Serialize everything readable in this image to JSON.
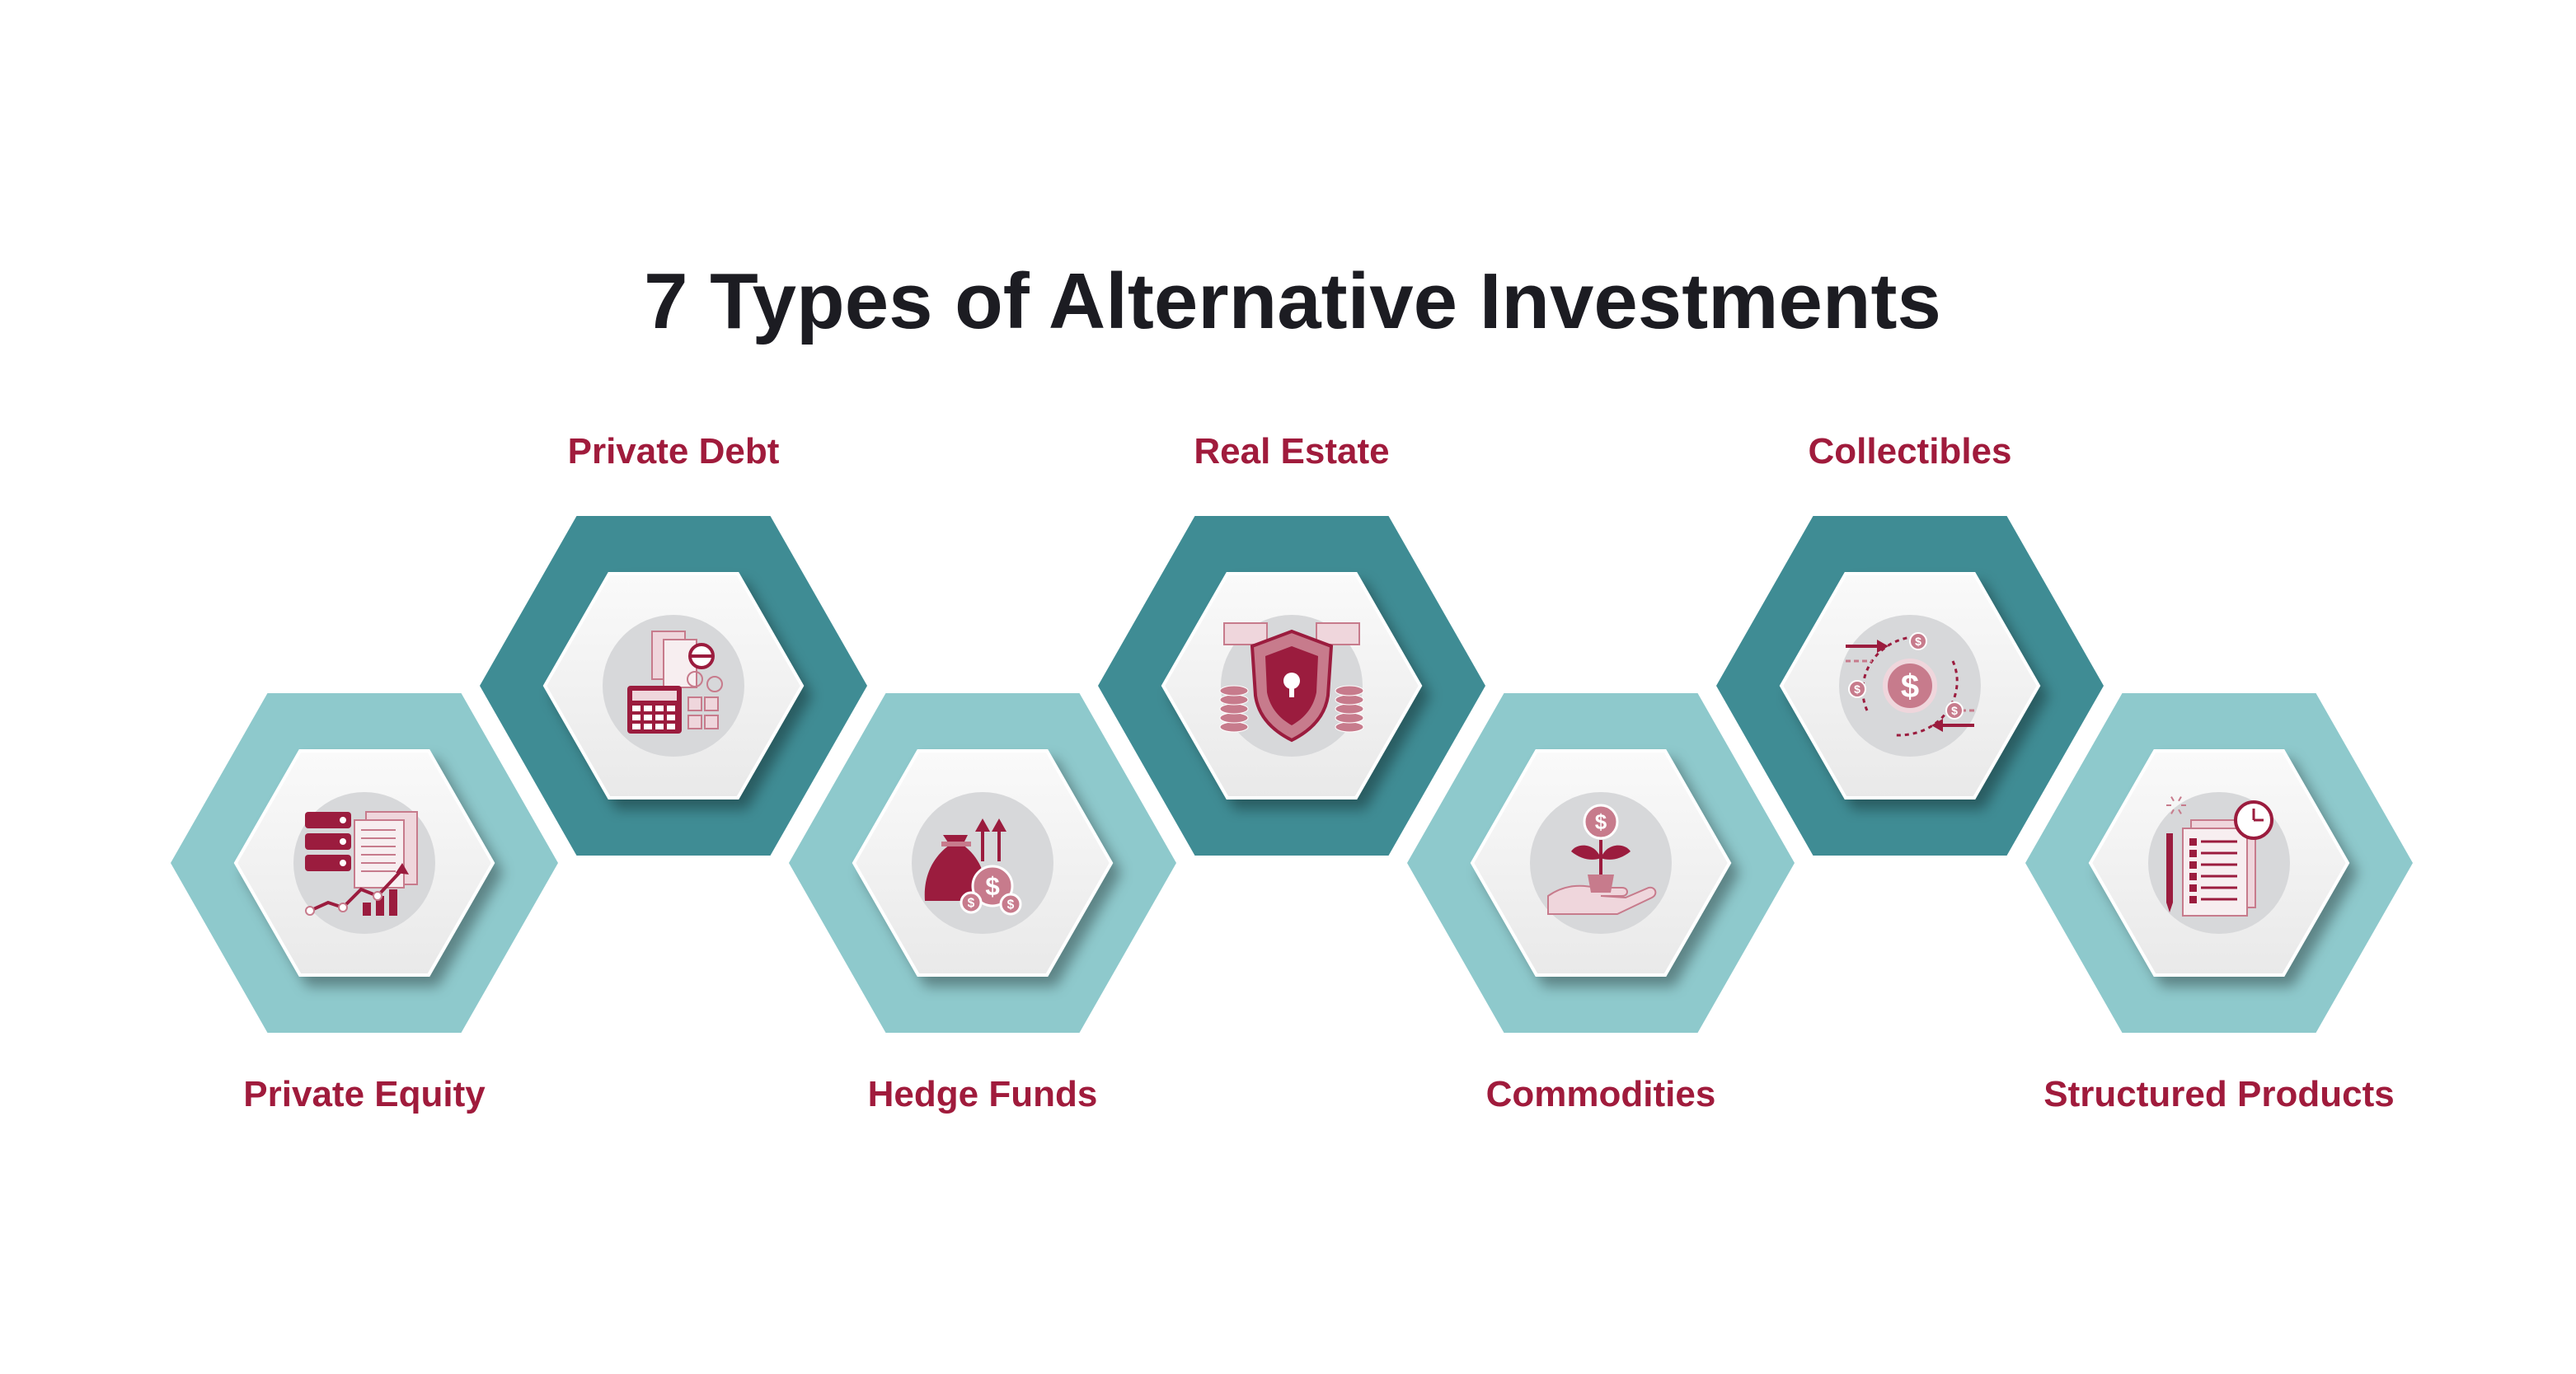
{
  "title": "7 Types of Alternative Investments",
  "colors": {
    "dark_teal": "#3f8c94",
    "light_teal": "#8ec9cc",
    "label_red": "#a01b3c",
    "icon_dark": "#9b1c3e",
    "icon_mid": "#c77b8c",
    "icon_light": "#efd6dc",
    "icon_circle": "#d7d8da",
    "inner_hex": "#f1f1f1"
  },
  "items": [
    {
      "label": "Private Equity",
      "row": "bottom",
      "tone": "light",
      "icon": "portfolio-growth-icon"
    },
    {
      "label": "Private Debt",
      "row": "top",
      "tone": "dark",
      "icon": "calculator-bill-icon"
    },
    {
      "label": "Hedge Funds",
      "row": "bottom",
      "tone": "light",
      "icon": "money-bag-icon"
    },
    {
      "label": "Real Estate",
      "row": "top",
      "tone": "dark",
      "icon": "shield-money-icon"
    },
    {
      "label": "Commodities",
      "row": "bottom",
      "tone": "light",
      "icon": "plant-coin-icon"
    },
    {
      "label": "Collectibles",
      "row": "top",
      "tone": "dark",
      "icon": "coin-exchange-icon"
    },
    {
      "label": "Structured Products",
      "row": "bottom",
      "tone": "light",
      "icon": "checklist-clock-icon"
    }
  ]
}
